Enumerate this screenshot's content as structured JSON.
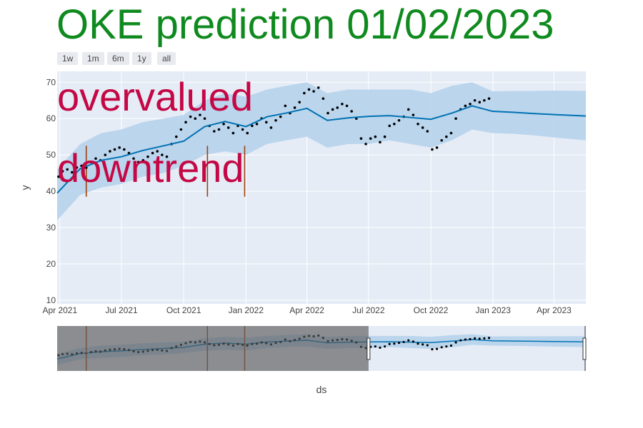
{
  "title": "OKE prediction 01/02/2023",
  "range_buttons": [
    "1w",
    "1m",
    "6m",
    "1y",
    "all"
  ],
  "annotations": [
    "overvalued",
    "downtrend"
  ],
  "colors": {
    "title": "#0f8a1e",
    "annotation": "#c40845",
    "plot_bg": "#e5ecf6",
    "forecast_line": "#0072b2",
    "uncertainty": "#b6d3ec",
    "actual_points": "#000000",
    "changepoints": "#a0400c"
  },
  "chart_data": {
    "type": "line",
    "xlabel": "ds",
    "ylabel": "y",
    "ylim": [
      9,
      73
    ],
    "xlim": [
      "2021-03-28",
      "2023-05-18"
    ],
    "yticks": [
      10,
      20,
      30,
      40,
      50,
      60,
      70
    ],
    "xticks": [
      "Apr 2021",
      "Jul 2021",
      "Oct 2021",
      "Jan 2022",
      "Apr 2022",
      "Jul 2022",
      "Oct 2022",
      "Jan 2023",
      "Apr 2023"
    ],
    "xtick_dates": [
      "2021-04-01",
      "2021-07-01",
      "2021-10-01",
      "2022-01-01",
      "2022-04-01",
      "2022-07-01",
      "2022-10-01",
      "2023-01-01",
      "2023-04-01"
    ],
    "grid": true,
    "changepoint_dates": [
      "2021-05-10",
      "2021-11-05",
      "2021-12-30"
    ],
    "series": [
      {
        "kind": "forecast",
        "x": [
          "2021-03-28",
          "2021-05-01",
          "2021-06-01",
          "2021-07-01",
          "2021-08-01",
          "2021-09-01",
          "2021-10-01",
          "2021-11-01",
          "2021-12-01",
          "2022-01-01",
          "2022-02-01",
          "2022-03-01",
          "2022-04-01",
          "2022-05-01",
          "2022-06-01",
          "2022-07-01",
          "2022-08-01",
          "2022-09-01",
          "2022-10-01",
          "2022-11-01",
          "2022-12-01",
          "2022-12-31",
          "2023-02-01",
          "2023-03-01",
          "2023-04-01",
          "2023-05-18"
        ],
        "y": [
          39.5,
          46.2,
          48.5,
          49.5,
          51.2,
          52.5,
          53.8,
          57.8,
          59.2,
          57.8,
          60.5,
          61.5,
          62.8,
          59.5,
          60.2,
          60.6,
          60.8,
          60.3,
          59.8,
          61.5,
          63.5,
          62.0,
          61.7,
          61.4,
          61.1,
          60.7
        ],
        "yhat_upper": [
          46,
          53,
          56,
          57,
          59,
          60,
          61,
          65,
          67,
          66,
          68,
          69,
          70,
          67,
          68,
          68,
          68,
          68,
          67,
          69,
          70,
          67.5,
          67.6,
          67.6,
          67.7,
          67.6
        ],
        "yhat_lower": [
          32,
          39,
          41,
          42,
          44,
          45,
          47,
          50,
          51,
          50,
          53,
          54,
          55,
          52,
          53,
          53,
          54,
          53,
          52,
          54,
          57,
          56.0,
          55.8,
          55.4,
          54.8,
          54.0
        ]
      },
      {
        "kind": "actual",
        "x": [
          "2021-03-30",
          "2021-04-05",
          "2021-04-12",
          "2021-04-19",
          "2021-04-26",
          "2021-05-03",
          "2021-05-10",
          "2021-05-17",
          "2021-05-24",
          "2021-05-31",
          "2021-06-07",
          "2021-06-14",
          "2021-06-21",
          "2021-06-28",
          "2021-07-05",
          "2021-07-12",
          "2021-07-19",
          "2021-07-26",
          "2021-08-02",
          "2021-08-09",
          "2021-08-16",
          "2021-08-23",
          "2021-08-30",
          "2021-09-06",
          "2021-09-13",
          "2021-09-20",
          "2021-09-27",
          "2021-10-04",
          "2021-10-11",
          "2021-10-18",
          "2021-10-25",
          "2021-11-01",
          "2021-11-08",
          "2021-11-15",
          "2021-11-22",
          "2021-11-29",
          "2021-12-06",
          "2021-12-13",
          "2021-12-20",
          "2021-12-27",
          "2022-01-03",
          "2022-01-10",
          "2022-01-17",
          "2022-01-24",
          "2022-01-31",
          "2022-02-07",
          "2022-02-14",
          "2022-02-21",
          "2022-02-28",
          "2022-03-07",
          "2022-03-14",
          "2022-03-21",
          "2022-03-28",
          "2022-04-04",
          "2022-04-11",
          "2022-04-18",
          "2022-04-25",
          "2022-05-02",
          "2022-05-09",
          "2022-05-16",
          "2022-05-23",
          "2022-05-30",
          "2022-06-06",
          "2022-06-13",
          "2022-06-20",
          "2022-06-27",
          "2022-07-04",
          "2022-07-11",
          "2022-07-18",
          "2022-07-25",
          "2022-08-01",
          "2022-08-08",
          "2022-08-15",
          "2022-08-22",
          "2022-08-29",
          "2022-09-05",
          "2022-09-12",
          "2022-09-19",
          "2022-09-26",
          "2022-10-03",
          "2022-10-10",
          "2022-10-17",
          "2022-10-24",
          "2022-10-31",
          "2022-11-07",
          "2022-11-14",
          "2022-11-21",
          "2022-11-28",
          "2022-12-05",
          "2022-12-12",
          "2022-12-19",
          "2022-12-26"
        ],
        "y": [
          44.0,
          45.5,
          46.0,
          45.2,
          46.5,
          47.0,
          46.5,
          48.0,
          49.0,
          48.5,
          50.0,
          51.0,
          51.5,
          52.0,
          51.5,
          50.5,
          49.0,
          48.0,
          48.5,
          49.5,
          50.5,
          51.0,
          50.0,
          49.5,
          53.0,
          55.0,
          57.0,
          59.0,
          60.5,
          60.0,
          61.0,
          60.0,
          58.0,
          56.5,
          57.0,
          58.5,
          57.5,
          56.0,
          58.0,
          57.0,
          56.0,
          58.0,
          58.5,
          60.0,
          59.0,
          57.5,
          59.5,
          60.5,
          63.5,
          61.5,
          63.0,
          64.5,
          67.0,
          68.0,
          67.5,
          68.5,
          65.5,
          61.5,
          62.5,
          63.0,
          64.0,
          63.5,
          62.0,
          60.0,
          54.5,
          53.0,
          54.5,
          55.0,
          53.5,
          55.0,
          58.0,
          58.5,
          59.5,
          60.5,
          62.5,
          61.0,
          58.5,
          57.5,
          56.5,
          51.5,
          52.0,
          54.0,
          55.0,
          56.0,
          60.0,
          62.5,
          63.5,
          64.0,
          65.0,
          64.5,
          65.0,
          65.5
        ]
      }
    ],
    "range_selector": {
      "window_start": "2022-07-01",
      "window_end": "2023-05-18"
    }
  }
}
